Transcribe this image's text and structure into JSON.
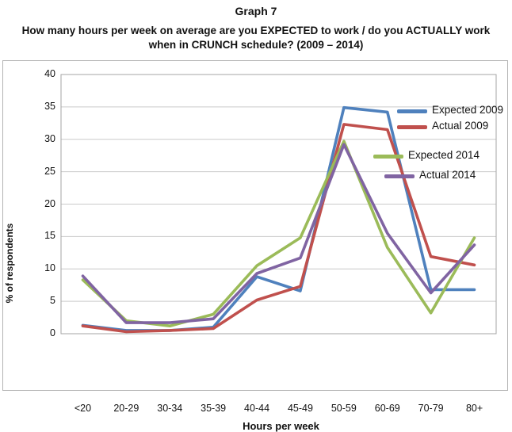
{
  "title": "Graph 7",
  "subtitle": "How many hours per week on average are you EXPECTED to work / do you ACTUALLY work when in CRUNCH schedule? (2009 – 2014)",
  "chart_data": {
    "type": "line",
    "title": "Graph 7",
    "categories": [
      "<20",
      "20-29",
      "30-34",
      "35-39",
      "40-44",
      "45-49",
      "50-59",
      "60-69",
      "70-79",
      "80+"
    ],
    "series": [
      {
        "name": "Expected 2009",
        "color": "#4F81BD",
        "values": [
          1.3,
          0.5,
          0.5,
          1.0,
          8.8,
          6.6,
          34.9,
          34.2,
          6.8,
          6.8
        ]
      },
      {
        "name": "Actual 2009",
        "color": "#C0504D",
        "values": [
          1.2,
          0.3,
          0.5,
          0.8,
          5.2,
          7.3,
          32.3,
          31.5,
          11.9,
          10.6
        ]
      },
      {
        "name": "Expected 2014",
        "color": "#9BBB59",
        "values": [
          8.3,
          2.0,
          1.2,
          3.0,
          10.5,
          14.8,
          29.7,
          13.3,
          3.2,
          14.8
        ]
      },
      {
        "name": "Actual 2014",
        "color": "#8064A2",
        "values": [
          8.9,
          1.7,
          1.7,
          2.3,
          9.3,
          11.7,
          29.2,
          15.5,
          6.3,
          13.7
        ]
      }
    ],
    "xlabel": "Hours per week",
    "ylabel": "% of respondents",
    "ylim": [
      0,
      40
    ],
    "ytick_step": 5,
    "grid": true,
    "legend_position": "inside-right",
    "gridline_color": "#c9c9c9",
    "plot_border_color": "#a6a6a6"
  }
}
